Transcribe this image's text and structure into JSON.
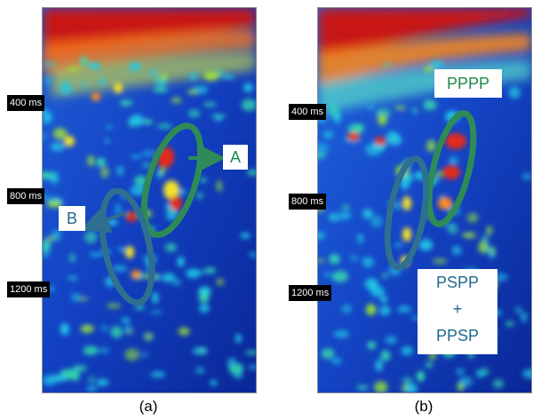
{
  "panels": [
    {
      "id": "a",
      "caption": "(a)"
    },
    {
      "id": "b",
      "caption": "(b)"
    }
  ],
  "time_labels": [
    "400 ms",
    "800 ms",
    "1200 ms"
  ],
  "annotations": {
    "a": {
      "A": "A",
      "B": "B"
    },
    "b": {
      "pppp": "PPPP",
      "pspp": "PSPP",
      "plus": "+",
      "ppsp": "PPSP"
    }
  },
  "colors": {
    "ellipse_green": "#2e8b57",
    "ellipse_blue": "#2f6f8f",
    "label_green": "#1f8a4c",
    "label_blue": "#1f6a8c",
    "background_blue": "#0b2a9e"
  }
}
